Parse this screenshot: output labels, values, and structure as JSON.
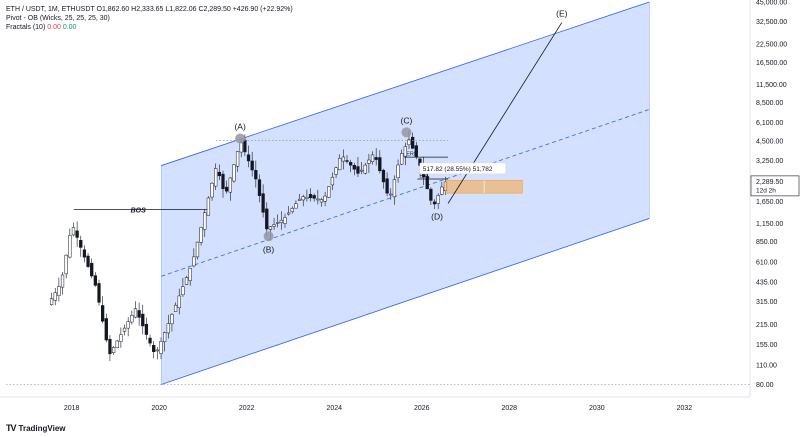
{
  "legend": {
    "symbol_line": "ETH / USDT, 1M, ETHUSDT",
    "ohlc": "O1,862.60 H2,333.65 L1,822.06 C2,289.50 +426.90 (+22.92%)",
    "pivot": "Pivot - OB (Wicks, 25, 25, 25, 30)",
    "fractals_label": "Fractals (10)",
    "fractals_red": "0.00",
    "fractals_green": "0.00"
  },
  "brand": {
    "logo": "TV",
    "name": "TradingView"
  },
  "colors": {
    "up": "#089981",
    "down": "#131722",
    "channel": "#2962ff",
    "box": "#f7a440",
    "text": "#131722"
  },
  "chart_data": {
    "type": "candlestick",
    "y_scale": "log",
    "ylim": [
      65,
      45000
    ],
    "xlim": [
      2016.5,
      2033.5
    ],
    "x_ticks": [
      "2018",
      "2020",
      "2022",
      "2024",
      "2026",
      "2028",
      "2030",
      "2032"
    ],
    "y_ticks": [
      "45,000.00",
      "32,500.00",
      "22,500.00",
      "16,500.00",
      "11,500.00",
      "8,500.00",
      "6,100.00",
      "4,500.00",
      "3,250.00",
      "2,289.50",
      "1,650.00",
      "1,150.00",
      "850.00",
      "610.00",
      "435.00",
      "315.00",
      "215.00",
      "155.00",
      "110.00",
      "80.00"
    ],
    "price_label": {
      "price": "2,289.50",
      "countdown": "12d 2h"
    },
    "anchors": [
      {
        "t": 2017.5,
        "p": 300
      },
      {
        "t": 2017.8,
        "p": 430
      },
      {
        "t": 2018.05,
        "p": 1150
      },
      {
        "t": 2018.3,
        "p": 700
      },
      {
        "t": 2018.6,
        "p": 400
      },
      {
        "t": 2018.9,
        "p": 130
      },
      {
        "t": 2019.5,
        "p": 280
      },
      {
        "t": 2019.95,
        "p": 130
      },
      {
        "t": 2020.2,
        "p": 200
      },
      {
        "t": 2020.8,
        "p": 600
      },
      {
        "t": 2021.35,
        "p": 3000
      },
      {
        "t": 2021.55,
        "p": 1800
      },
      {
        "t": 2021.9,
        "p": 4500
      },
      {
        "t": 2022.25,
        "p": 2400
      },
      {
        "t": 2022.5,
        "p": 1050
      },
      {
        "t": 2022.9,
        "p": 1250
      },
      {
        "t": 2023.3,
        "p": 1800
      },
      {
        "t": 2023.8,
        "p": 1700
      },
      {
        "t": 2024.2,
        "p": 3600
      },
      {
        "t": 2024.6,
        "p": 2600
      },
      {
        "t": 2024.95,
        "p": 3700
      },
      {
        "t": 2025.3,
        "p": 1700
      },
      {
        "t": 2025.55,
        "p": 3500
      },
      {
        "t": 2025.75,
        "p": 4600
      },
      {
        "t": 2026.0,
        "p": 3000
      },
      {
        "t": 2026.3,
        "p": 1500
      },
      {
        "t": 2026.55,
        "p": 2289.5
      }
    ],
    "channel": {
      "upper": [
        [
          2020.05,
          3000
        ],
        [
          2031.2,
          45000
        ]
      ],
      "middle": [
        [
          2020.05,
          480
        ],
        [
          2031.2,
          7600
        ]
      ],
      "lower": [
        [
          2020.05,
          80
        ],
        [
          2031.2,
          1250
        ]
      ]
    },
    "projection": [
      [
        2026.6,
        1600
      ],
      [
        2029.2,
        32000
      ]
    ],
    "waves": [
      {
        "label": "(A)",
        "t": 2021.85,
        "p": 4700,
        "marker": true
      },
      {
        "label": "(B)",
        "t": 2022.5,
        "p": 930,
        "marker": true
      },
      {
        "label": "(C)",
        "t": 2025.65,
        "p": 5200,
        "marker": true
      },
      {
        "label": "(D)",
        "t": 2026.35,
        "p": 1450,
        "marker": false
      },
      {
        "label": "(E)",
        "t": 2029.2,
        "p": 32000,
        "marker": false
      }
    ],
    "bos": {
      "label": "BOS",
      "t1": 2018.05,
      "t2": 2021.1,
      "p": 1450
    },
    "erl_top": {
      "label": "ERL",
      "t1": 2025.6,
      "t2": 2026.6,
      "p": 3450
    },
    "erl_low": {
      "label": "ERL",
      "t1": 2025.9,
      "t2": 2026.6,
      "p": 2400
    },
    "measure": {
      "text": "517.82 (28.55%) 51,782",
      "t": 2026.0,
      "p": 2700
    },
    "ob_box": {
      "t1": 2026.55,
      "t2": 2028.3,
      "p_low": 1900,
      "p_high": 2350
    },
    "h_lines": [
      {
        "p": 4550,
        "t1": 2021.3,
        "t2": 2026.6
      },
      {
        "p": 80,
        "t1": 2016.5,
        "t2": 2033.5
      }
    ]
  }
}
